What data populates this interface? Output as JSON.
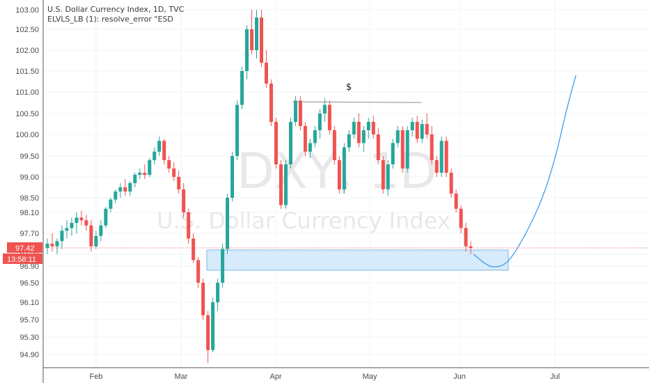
{
  "header": {
    "title": "U.S. Dollar Currency Index, 1D, TVC",
    "indicator": "ELVLS_LB (1): resolve_error \"ESD"
  },
  "watermark": {
    "symbol": "DXY, 1D",
    "name": "U.S. Dollar Currency Index"
  },
  "annotation": {
    "label": "$"
  },
  "price_label": {
    "price": "97.42",
    "countdown": "13:58:11"
  },
  "colors": {
    "up": "#26a69a",
    "down": "#ef5350",
    "price_line": "#ef5350",
    "zone_fill": "#d6ebfb",
    "zone_stroke": "#7fb8e6",
    "projection": "#3d9be9",
    "resistance": "#8a8a8a"
  },
  "chart_data": {
    "type": "candlestick",
    "title": "U.S. Dollar Currency Index, 1D, TVC",
    "y_axis": {
      "side": "left",
      "ticks": [
        "103.00",
        "102.50",
        "102.00",
        "101.50",
        "101.00",
        "100.50",
        "100.00",
        "99.50",
        "99.00",
        "98.50",
        "98.10",
        "97.70",
        "97.30",
        "96.90",
        "96.50",
        "96.10",
        "95.70",
        "95.30",
        "94.90"
      ],
      "range": [
        94.7,
        103.1
      ]
    },
    "x_axis": {
      "ticks": [
        "Feb",
        "Mar",
        "Apr",
        "May",
        "Jun",
        "Jul"
      ],
      "range_days": [
        0,
        188
      ]
    },
    "last_price": 97.42,
    "candles_ohlc": [
      [
        97.42,
        97.6,
        97.3,
        97.5
      ],
      [
        97.5,
        97.7,
        97.35,
        97.45
      ],
      [
        97.45,
        97.6,
        97.3,
        97.55
      ],
      [
        97.55,
        97.85,
        97.4,
        97.75
      ],
      [
        97.75,
        97.95,
        97.6,
        97.8
      ],
      [
        97.8,
        98.0,
        97.65,
        97.9
      ],
      [
        97.9,
        98.1,
        97.7,
        98.0
      ],
      [
        98.0,
        98.15,
        97.85,
        97.95
      ],
      [
        97.95,
        98.05,
        97.75,
        97.85
      ],
      [
        97.85,
        97.95,
        97.35,
        97.45
      ],
      [
        97.45,
        97.75,
        97.4,
        97.65
      ],
      [
        97.65,
        97.95,
        97.55,
        97.85
      ],
      [
        97.85,
        98.25,
        97.8,
        98.2
      ],
      [
        98.2,
        98.5,
        98.1,
        98.45
      ],
      [
        98.45,
        98.7,
        98.35,
        98.65
      ],
      [
        98.65,
        98.85,
        98.5,
        98.75
      ],
      [
        98.75,
        98.95,
        98.55,
        98.65
      ],
      [
        98.65,
        98.9,
        98.55,
        98.85
      ],
      [
        98.85,
        99.1,
        98.75,
        99.05
      ],
      [
        99.05,
        99.2,
        98.95,
        99.1
      ],
      [
        99.1,
        99.3,
        98.95,
        99.05
      ],
      [
        99.05,
        99.45,
        99.0,
        99.4
      ],
      [
        99.4,
        99.7,
        99.3,
        99.6
      ],
      [
        99.6,
        99.95,
        99.5,
        99.85
      ],
      [
        99.85,
        99.9,
        99.3,
        99.4
      ],
      [
        99.4,
        99.5,
        99.1,
        99.2
      ],
      [
        99.2,
        99.35,
        98.9,
        99.0
      ],
      [
        99.0,
        99.15,
        98.6,
        98.7
      ],
      [
        98.7,
        98.85,
        98.0,
        98.1
      ],
      [
        98.1,
        98.2,
        97.5,
        97.6
      ],
      [
        97.6,
        97.7,
        97.0,
        97.1
      ],
      [
        97.1,
        97.2,
        96.4,
        96.5
      ],
      [
        96.5,
        96.6,
        95.7,
        95.8
      ],
      [
        95.8,
        95.9,
        94.7,
        95.0
      ],
      [
        95.0,
        96.2,
        94.95,
        96.1
      ],
      [
        96.1,
        96.6,
        95.9,
        96.5
      ],
      [
        96.5,
        97.5,
        96.4,
        97.4
      ],
      [
        97.4,
        98.6,
        97.3,
        98.5
      ],
      [
        98.5,
        99.6,
        98.4,
        99.5
      ],
      [
        99.5,
        100.8,
        99.4,
        100.7
      ],
      [
        100.7,
        101.6,
        100.6,
        101.5
      ],
      [
        101.5,
        102.6,
        101.3,
        102.5
      ],
      [
        102.5,
        103.0,
        101.9,
        102.0
      ],
      [
        102.0,
        103.0,
        101.8,
        102.8
      ],
      [
        102.8,
        103.0,
        101.6,
        101.7
      ],
      [
        101.7,
        102.0,
        101.1,
        101.2
      ],
      [
        101.2,
        101.3,
        100.2,
        100.3
      ],
      [
        100.3,
        100.4,
        99.2,
        99.3
      ],
      [
        99.3,
        99.4,
        98.2,
        98.3
      ],
      [
        98.3,
        99.4,
        98.2,
        99.3
      ],
      [
        99.3,
        100.4,
        99.2,
        100.3
      ],
      [
        100.3,
        100.9,
        100.2,
        100.8
      ],
      [
        100.8,
        100.9,
        100.1,
        100.2
      ],
      [
        100.2,
        100.3,
        99.5,
        99.6
      ],
      [
        99.6,
        99.9,
        99.45,
        99.8
      ],
      [
        99.8,
        100.2,
        99.7,
        100.1
      ],
      [
        100.1,
        100.6,
        99.9,
        100.5
      ],
      [
        100.5,
        100.85,
        100.3,
        100.7
      ],
      [
        100.7,
        100.8,
        100.0,
        100.1
      ],
      [
        100.1,
        100.2,
        99.3,
        99.4
      ],
      [
        99.4,
        99.5,
        98.6,
        98.7
      ],
      [
        98.7,
        99.8,
        98.6,
        99.7
      ],
      [
        99.7,
        100.1,
        99.6,
        100.0
      ],
      [
        100.0,
        100.4,
        99.9,
        100.3
      ],
      [
        100.3,
        100.5,
        99.7,
        99.8
      ],
      [
        99.8,
        100.2,
        99.6,
        100.1
      ],
      [
        100.1,
        100.4,
        99.9,
        100.3
      ],
      [
        100.3,
        100.45,
        99.9,
        100.0
      ],
      [
        100.0,
        100.15,
        99.3,
        99.4
      ],
      [
        99.4,
        99.5,
        98.6,
        98.7
      ],
      [
        98.7,
        99.4,
        98.55,
        99.3
      ],
      [
        99.3,
        99.9,
        99.2,
        99.8
      ],
      [
        99.8,
        100.2,
        99.7,
        100.1
      ],
      [
        100.1,
        100.2,
        99.1,
        99.2
      ],
      [
        99.2,
        100.2,
        99.1,
        100.1
      ],
      [
        100.1,
        100.4,
        99.95,
        100.3
      ],
      [
        100.3,
        100.45,
        99.8,
        99.9
      ],
      [
        99.9,
        100.35,
        99.8,
        100.25
      ],
      [
        100.25,
        100.5,
        99.9,
        100.0
      ],
      [
        100.0,
        100.2,
        99.3,
        99.4
      ],
      [
        99.4,
        99.5,
        99.0,
        99.1
      ],
      [
        99.1,
        99.95,
        99.0,
        99.85
      ],
      [
        99.85,
        99.95,
        99.0,
        99.1
      ],
      [
        99.1,
        99.2,
        98.5,
        98.6
      ],
      [
        98.6,
        98.7,
        98.1,
        98.2
      ],
      [
        98.2,
        98.3,
        97.7,
        97.8
      ],
      [
        97.8,
        97.9,
        97.35,
        97.45
      ],
      [
        97.45,
        97.55,
        97.3,
        97.42
      ]
    ],
    "shapes": {
      "demand_zone": {
        "x1_day": 77,
        "x2_day": 150,
        "top": 97.38,
        "bottom": 96.8
      },
      "resistance_line": {
        "x1_day": 90,
        "x2_day": 125,
        "price": 100.77
      },
      "annotation_at": {
        "day": 104,
        "price": 101.05
      },
      "projection_curve": [
        [
          136,
          97.2
        ],
        [
          145,
          96.85
        ],
        [
          152,
          97.0
        ],
        [
          160,
          98.3
        ],
        [
          167,
          99.8
        ],
        [
          172,
          101.1
        ],
        [
          176,
          101.4
        ]
      ]
    }
  }
}
